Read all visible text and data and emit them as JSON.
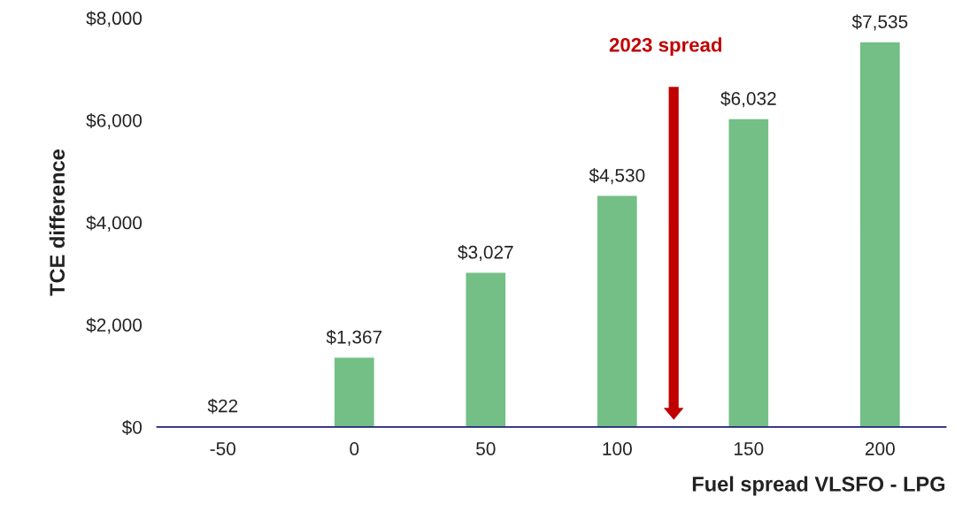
{
  "chart_data": {
    "type": "bar",
    "xlabel": "Fuel spread VLSFO - LPG",
    "ylabel": "TCE difference",
    "categories": [
      "-50",
      "0",
      "50",
      "100",
      "150",
      "200"
    ],
    "values": [
      22,
      1367,
      3027,
      4530,
      6032,
      7535
    ],
    "value_labels": [
      "$22",
      "$1,367",
      "$3,027",
      "$4,530",
      "$6,032",
      "$7,535"
    ],
    "color": "#73bf85",
    "ylim": [
      0,
      8000
    ],
    "yticks": [
      {
        "value": 0,
        "label": "$0"
      },
      {
        "value": 2000,
        "label": "$2,000"
      },
      {
        "value": 4000,
        "label": "$4,000"
      },
      {
        "value": 6000,
        "label": "$6,000"
      },
      {
        "value": 8000,
        "label": "$8,000"
      }
    ],
    "annotations": [
      "2023 spread"
    ],
    "grid": false,
    "legend": false
  }
}
